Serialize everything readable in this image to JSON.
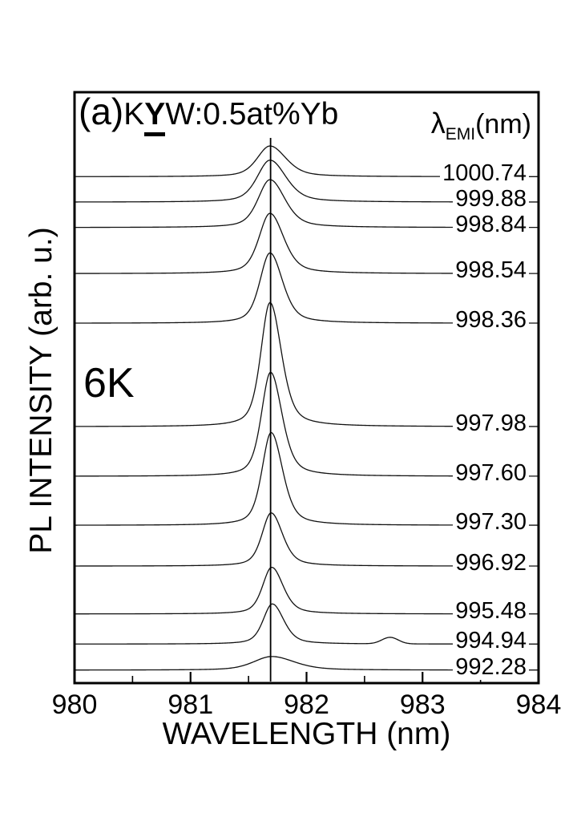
{
  "figure": {
    "panel_label": "(a)",
    "title_k": "K",
    "title_y": "Y",
    "title_rest": "W:0.5at%Yb",
    "temperature": "6K",
    "emission_header": {
      "lambda": "λ",
      "sub": "EMI",
      "units": "(nm)"
    }
  },
  "chart_data": {
    "type": "line",
    "title": "(a) KYW:0.5at%Yb",
    "xlabel": "WAVELENGTH (nm)",
    "ylabel": "PL INTENSITY (arb. u.)",
    "xlim": [
      980,
      984
    ],
    "x_major_ticks": [
      "980",
      "981",
      "982",
      "983",
      "984"
    ],
    "x_minor_ticks": [
      980.5,
      981.5,
      982.5,
      983.5
    ],
    "grid": false,
    "legend_position": "labels on curve baselines, right side inside plot",
    "temperature": "6K",
    "peak_marker_nm": 981.69,
    "y_units": "arbitrary (stacked offsets, fraction of plot height)",
    "series": [
      {
        "emission_nm": "1000.74",
        "offset": 0.857,
        "peak": {
          "center_nm": 981.685,
          "height": 0.052,
          "hwhm_nm": 0.14
        }
      },
      {
        "emission_nm": "999.88",
        "offset": 0.814,
        "peak": {
          "center_nm": 981.685,
          "height": 0.071,
          "hwhm_nm": 0.14
        }
      },
      {
        "emission_nm": "998.84",
        "offset": 0.771,
        "peak": {
          "center_nm": 981.685,
          "height": 0.081,
          "hwhm_nm": 0.13
        }
      },
      {
        "emission_nm": "998.54",
        "offset": 0.693,
        "peak": {
          "center_nm": 981.685,
          "height": 0.102,
          "hwhm_nm": 0.12
        }
      },
      {
        "emission_nm": "998.36",
        "offset": 0.609,
        "peak": {
          "center_nm": 981.685,
          "height": 0.119,
          "hwhm_nm": 0.11
        }
      },
      {
        "emission_nm": "997.98",
        "offset": 0.434,
        "peak": {
          "center_nm": 981.685,
          "height": 0.21,
          "hwhm_nm": 0.1
        }
      },
      {
        "emission_nm": "997.60",
        "offset": 0.35,
        "peak": {
          "center_nm": 981.69,
          "height": 0.176,
          "hwhm_nm": 0.1
        }
      },
      {
        "emission_nm": "997.30",
        "offset": 0.267,
        "peak": {
          "center_nm": 981.695,
          "height": 0.157,
          "hwhm_nm": 0.1
        }
      },
      {
        "emission_nm": "996.92",
        "offset": 0.198,
        "peak": {
          "center_nm": 981.695,
          "height": 0.09,
          "hwhm_nm": 0.1
        }
      },
      {
        "emission_nm": "995.48",
        "offset": 0.117,
        "peak": {
          "center_nm": 981.7,
          "height": 0.079,
          "hwhm_nm": 0.1
        }
      },
      {
        "emission_nm": "994.94",
        "offset": 0.066,
        "peak": {
          "center_nm": 981.705,
          "height": 0.068,
          "hwhm_nm": 0.1
        },
        "secondary_peak": {
          "center_nm": 982.72,
          "height": 0.011,
          "hwhm_nm": 0.07
        }
      },
      {
        "emission_nm": "992.28",
        "offset": 0.022,
        "peak": {
          "center_nm": 981.7,
          "height": 0.023,
          "hwhm_nm": 0.2
        }
      }
    ]
  }
}
